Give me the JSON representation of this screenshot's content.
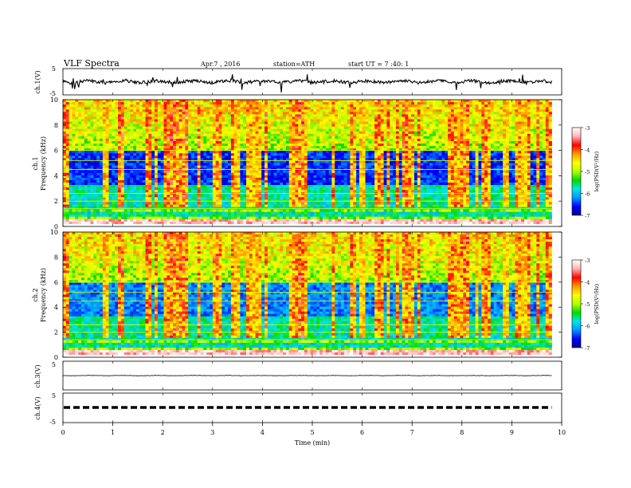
{
  "header": {
    "title": "VLF Spectra",
    "date": "Apr.7 , 2016",
    "station": "station=ATH",
    "start": "start UT = 7 :40: 1"
  },
  "colorbar": {
    "label": "log(PSD(V²/Hz)",
    "ticks": [
      "-3",
      "-4",
      "-5",
      "-6",
      "-7"
    ],
    "colors": [
      "#00008c",
      "#0000ff",
      "#0096ff",
      "#00e6e6",
      "#00dc00",
      "#b4ff00",
      "#ffff00",
      "#ff9600",
      "#ff0000",
      "#ffb4b4",
      "#ffffff"
    ]
  },
  "chart_data": [
    {
      "type": "line",
      "panel": "ch.1",
      "ylabel": "ch.1(V)",
      "ylim": [
        -5,
        5
      ],
      "yticks": [
        "5",
        "-5"
      ],
      "xlim": [
        0,
        10
      ],
      "description_values": {
        "baseline": 0,
        "min": -1.5,
        "max": 1.5
      }
    },
    {
      "type": "heatmap",
      "panel": "ch.1",
      "ylabel": "Frequency (kHz)",
      "ylabel_channel": "ch.1",
      "ylim": [
        0,
        10
      ],
      "yticks": [
        "0",
        "2",
        "4",
        "6",
        "8",
        "10"
      ],
      "xlim": [
        0,
        9.8
      ],
      "zlim": [
        -7,
        -3
      ],
      "zlabel": "log(PSD(V²/Hz)"
    },
    {
      "type": "heatmap",
      "panel": "ch.2",
      "ylabel": "Frequency (kHz)",
      "ylabel_channel": "ch.2",
      "ylim": [
        0,
        10
      ],
      "yticks": [
        "0",
        "2",
        "4",
        "6",
        "8",
        "10"
      ],
      "xlim": [
        0,
        9.8
      ],
      "zlim": [
        -7,
        -3
      ],
      "zlabel": "log(PSD(V²/Hz)"
    },
    {
      "type": "line",
      "panel": "ch.3",
      "ylabel": "ch.3(V)",
      "ylim": [
        -5,
        5
      ],
      "yticks": [
        "5"
      ],
      "xlim": [
        0,
        10
      ],
      "description_values": {
        "baseline": 0
      }
    },
    {
      "type": "line",
      "panel": "ch.4",
      "ylabel": "ch.4(V)",
      "ylim": [
        -5,
        5
      ],
      "yticks": [
        "5",
        "-5"
      ],
      "xlim": [
        0,
        10
      ],
      "description_values": {
        "baseline": 0
      }
    }
  ],
  "xaxis": {
    "label": "Time (min)",
    "ticks": [
      "0",
      "1",
      "2",
      "3",
      "4",
      "5",
      "6",
      "7",
      "8",
      "9",
      "10"
    ],
    "range": [
      0,
      10
    ]
  }
}
